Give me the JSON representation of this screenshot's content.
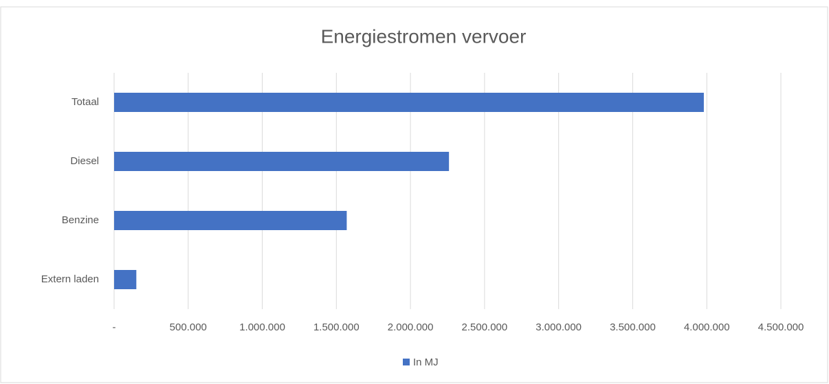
{
  "chart_data": {
    "type": "bar",
    "orientation": "horizontal",
    "title": "Energiestromen vervoer",
    "categories": [
      "Totaal",
      "Diesel",
      "Benzine",
      "Extern laden"
    ],
    "series": [
      {
        "name": "In MJ",
        "color": "#4472c4",
        "values": [
          3980000,
          2260000,
          1570000,
          150000
        ]
      }
    ],
    "xlim": [
      0,
      4500000
    ],
    "xticks": [
      {
        "value": 0,
        "label": "-"
      },
      {
        "value": 500000,
        "label": "500.000"
      },
      {
        "value": 1000000,
        "label": "1.000.000"
      },
      {
        "value": 1500000,
        "label": "1.500.000"
      },
      {
        "value": 2000000,
        "label": "2.000.000"
      },
      {
        "value": 2500000,
        "label": "2.500.000"
      },
      {
        "value": 3000000,
        "label": "3.000.000"
      },
      {
        "value": 3500000,
        "label": "3.500.000"
      },
      {
        "value": 4000000,
        "label": "4.000.000"
      },
      {
        "value": 4500000,
        "label": "4.500.000"
      }
    ],
    "grid": true,
    "legend": "bottom"
  }
}
